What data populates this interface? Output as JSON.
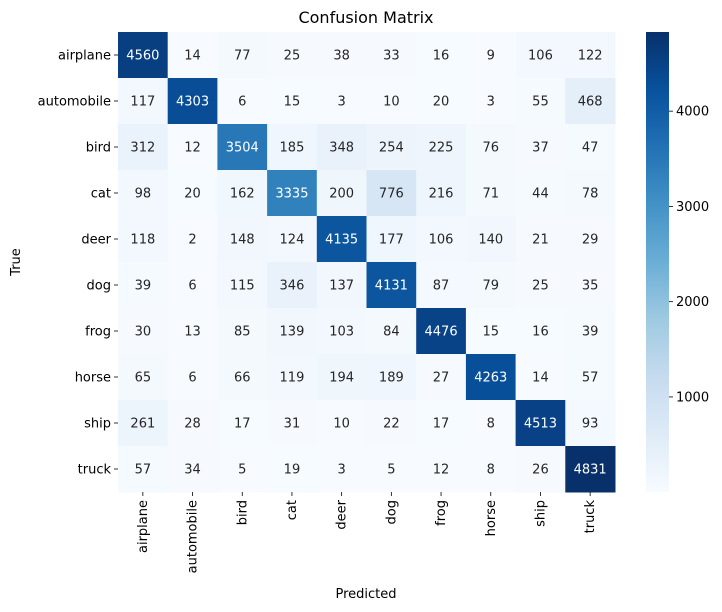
{
  "chart_data": {
    "type": "heatmap",
    "title": "Confusion Matrix",
    "xlabel": "Predicted",
    "ylabel": "True",
    "x_categories": [
      "airplane",
      "automobile",
      "bird",
      "cat",
      "deer",
      "dog",
      "frog",
      "horse",
      "ship",
      "truck"
    ],
    "y_categories": [
      "airplane",
      "automobile",
      "bird",
      "cat",
      "deer",
      "dog",
      "frog",
      "horse",
      "ship",
      "truck"
    ],
    "values": [
      [
        4560,
        14,
        77,
        25,
        38,
        33,
        16,
        9,
        106,
        122
      ],
      [
        117,
        4303,
        6,
        15,
        3,
        10,
        20,
        3,
        55,
        468
      ],
      [
        312,
        12,
        3504,
        185,
        348,
        254,
        225,
        76,
        37,
        47
      ],
      [
        98,
        20,
        162,
        3335,
        200,
        776,
        216,
        71,
        44,
        78
      ],
      [
        118,
        2,
        148,
        124,
        4135,
        177,
        106,
        140,
        21,
        29
      ],
      [
        39,
        6,
        115,
        346,
        137,
        4131,
        87,
        79,
        25,
        35
      ],
      [
        30,
        13,
        85,
        139,
        103,
        84,
        4476,
        15,
        16,
        39
      ],
      [
        65,
        6,
        66,
        119,
        194,
        189,
        27,
        4263,
        14,
        57
      ],
      [
        261,
        28,
        17,
        31,
        10,
        22,
        17,
        8,
        4513,
        93
      ],
      [
        57,
        34,
        5,
        19,
        3,
        5,
        12,
        8,
        26,
        4831
      ]
    ],
    "colormap": "Blues",
    "colorbar": {
      "min": 2,
      "max": 4831,
      "ticks": [
        1000,
        2000,
        3000,
        4000
      ]
    },
    "annotations": true,
    "grid": false
  }
}
